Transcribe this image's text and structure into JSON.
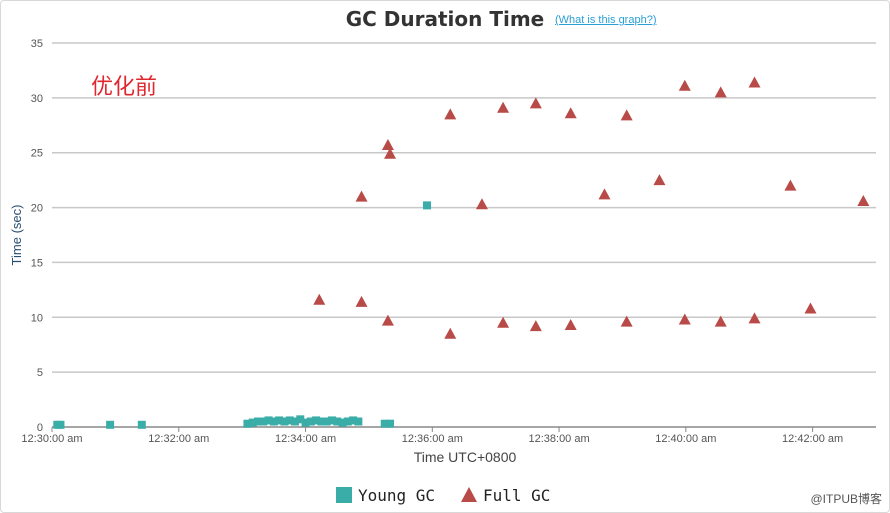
{
  "header": {
    "title": "GC Duration Time",
    "help_link": "(What is this graph?)"
  },
  "annotation": "优化前",
  "watermark": "@ITPUB博客",
  "chart_data": {
    "type": "scatter",
    "title": "GC Duration Time",
    "xlabel": "Time UTC+0800",
    "ylabel": "Time (sec)",
    "xlim": [
      "12:30:00 am",
      "12:43:00 am"
    ],
    "ylim": [
      0,
      35
    ],
    "yticks": [
      0,
      5,
      10,
      15,
      20,
      25,
      30,
      35
    ],
    "xticks": [
      "12:30:00 am",
      "12:32:00 am",
      "12:34:00 am",
      "12:36:00 am",
      "12:38:00 am",
      "12:40:00 am",
      "12:42:00 am"
    ],
    "grid": true,
    "legend_position": "bottom",
    "series": [
      {
        "name": "Young GC",
        "marker": "square",
        "color": "#3aada8",
        "points": [
          [
            "12:30:05 am",
            0.2
          ],
          [
            "12:30:08 am",
            0.2
          ],
          [
            "12:30:55 am",
            0.2
          ],
          [
            "12:31:25 am",
            0.2
          ],
          [
            "12:33:05 am",
            0.3
          ],
          [
            "12:33:10 am",
            0.4
          ],
          [
            "12:33:15 am",
            0.5
          ],
          [
            "12:33:20 am",
            0.5
          ],
          [
            "12:33:25 am",
            0.6
          ],
          [
            "12:33:30 am",
            0.5
          ],
          [
            "12:33:35 am",
            0.6
          ],
          [
            "12:33:40 am",
            0.5
          ],
          [
            "12:33:45 am",
            0.6
          ],
          [
            "12:33:50 am",
            0.5
          ],
          [
            "12:33:55 am",
            0.7
          ],
          [
            "12:34:00 am",
            0.4
          ],
          [
            "12:34:05 am",
            0.5
          ],
          [
            "12:34:10 am",
            0.6
          ],
          [
            "12:34:15 am",
            0.5
          ],
          [
            "12:34:20 am",
            0.5
          ],
          [
            "12:34:25 am",
            0.6
          ],
          [
            "12:34:30 am",
            0.5
          ],
          [
            "12:34:35 am",
            0.4
          ],
          [
            "12:34:40 am",
            0.5
          ],
          [
            "12:34:45 am",
            0.6
          ],
          [
            "12:34:50 am",
            0.5
          ],
          [
            "12:35:15 am",
            0.3
          ],
          [
            "12:35:20 am",
            0.3
          ],
          [
            "12:35:55 am",
            20.2
          ]
        ]
      },
      {
        "name": "Full GC",
        "marker": "triangle",
        "color": "#b84a47",
        "points": [
          [
            "12:34:13 am",
            11.6
          ],
          [
            "12:34:53 am",
            21.0
          ],
          [
            "12:34:53 am",
            11.4
          ],
          [
            "12:35:18 am",
            25.7
          ],
          [
            "12:35:20 am",
            24.9
          ],
          [
            "12:35:18 am",
            9.7
          ],
          [
            "12:36:17 am",
            28.5
          ],
          [
            "12:36:17 am",
            8.5
          ],
          [
            "12:36:47 am",
            20.3
          ],
          [
            "12:37:07 am",
            29.1
          ],
          [
            "12:37:07 am",
            9.5
          ],
          [
            "12:37:38 am",
            29.5
          ],
          [
            "12:37:38 am",
            9.2
          ],
          [
            "12:38:11 am",
            28.6
          ],
          [
            "12:38:11 am",
            9.3
          ],
          [
            "12:38:43 am",
            21.2
          ],
          [
            "12:39:04 am",
            28.4
          ],
          [
            "12:39:04 am",
            9.6
          ],
          [
            "12:39:35 am",
            22.5
          ],
          [
            "12:39:59 am",
            31.1
          ],
          [
            "12:39:59 am",
            9.8
          ],
          [
            "12:40:33 am",
            30.5
          ],
          [
            "12:40:33 am",
            9.6
          ],
          [
            "12:41:05 am",
            31.4
          ],
          [
            "12:41:05 am",
            9.9
          ],
          [
            "12:41:39 am",
            22.0
          ],
          [
            "12:41:58 am",
            10.8
          ],
          [
            "12:42:48 am",
            20.6
          ]
        ]
      }
    ]
  }
}
